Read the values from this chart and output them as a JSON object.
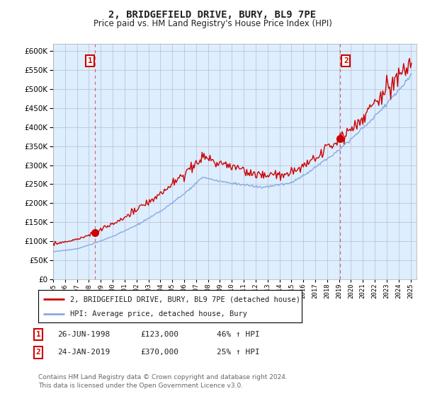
{
  "title": "2, BRIDGEFIELD DRIVE, BURY, BL9 7PE",
  "subtitle": "Price paid vs. HM Land Registry's House Price Index (HPI)",
  "sale1_price": 123000,
  "sale1_year": 1998.49,
  "sale2_price": 370000,
  "sale2_year": 2019.07,
  "legend_line1": "2, BRIDGEFIELD DRIVE, BURY, BL9 7PE (detached house)",
  "legend_line2": "HPI: Average price, detached house, Bury",
  "sale_line_color": "#cc0000",
  "hpi_line_color": "#88aadd",
  "chart_bg_color": "#ddeeff",
  "ylim_min": 0,
  "ylim_max": 620000,
  "ytick_step": 50000,
  "x_start_year": 1995,
  "x_end_year": 2025,
  "background_color": "#ffffff",
  "grid_color": "#bbbbcc"
}
